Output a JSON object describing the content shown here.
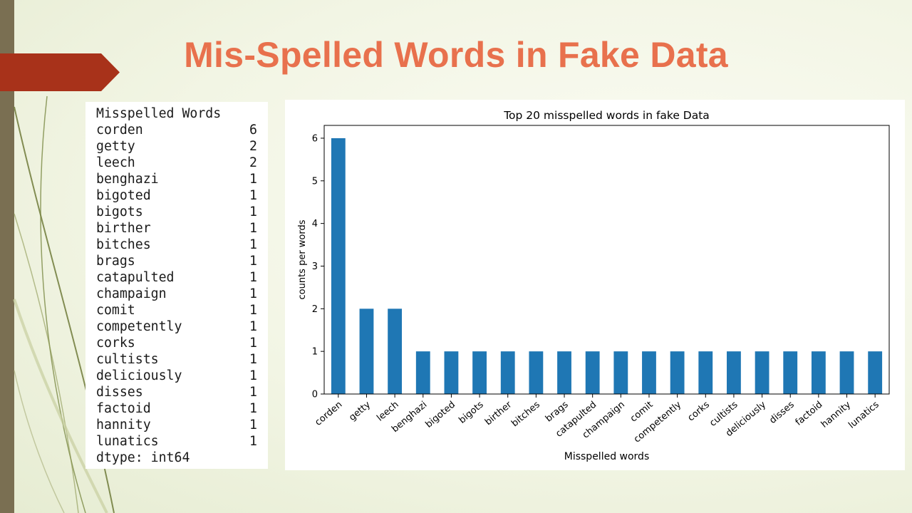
{
  "slide": {
    "title": "Mis-Spelled Words in Fake Data",
    "colors": {
      "title": "#e8714d",
      "accent_arrow": "#a8321a",
      "left_bar": "#7a6f52",
      "bar": "#1f77b4"
    }
  },
  "series_table": {
    "header": "Misspelled Words",
    "rows": [
      {
        "word": "corden",
        "count": "6"
      },
      {
        "word": "getty",
        "count": "2"
      },
      {
        "word": "leech",
        "count": "2"
      },
      {
        "word": "benghazi",
        "count": "1"
      },
      {
        "word": "bigoted",
        "count": "1"
      },
      {
        "word": "bigots",
        "count": "1"
      },
      {
        "word": "birther",
        "count": "1"
      },
      {
        "word": "bitches",
        "count": "1"
      },
      {
        "word": "brags",
        "count": "1"
      },
      {
        "word": "catapulted",
        "count": "1"
      },
      {
        "word": "champaign",
        "count": "1"
      },
      {
        "word": "comit",
        "count": "1"
      },
      {
        "word": "competently",
        "count": "1"
      },
      {
        "word": "corks",
        "count": "1"
      },
      {
        "word": "cultists",
        "count": "1"
      },
      {
        "word": "deliciously",
        "count": "1"
      },
      {
        "word": "disses",
        "count": "1"
      },
      {
        "word": "factoid",
        "count": "1"
      },
      {
        "word": "hannity",
        "count": "1"
      },
      {
        "word": "lunatics",
        "count": "1"
      }
    ],
    "footer": "dtype: int64"
  },
  "chart_data": {
    "type": "bar",
    "title": "Top 20 misspelled words in fake Data",
    "xlabel": "Misspelled words",
    "ylabel": "counts per words",
    "categories": [
      "corden",
      "getty",
      "leech",
      "benghazi",
      "bigoted",
      "bigots",
      "birther",
      "bitches",
      "brags",
      "catapulted",
      "champaign",
      "comit",
      "competently",
      "corks",
      "cultists",
      "deliciously",
      "disses",
      "factoid",
      "hannity",
      "lunatics"
    ],
    "values": [
      6,
      2,
      2,
      1,
      1,
      1,
      1,
      1,
      1,
      1,
      1,
      1,
      1,
      1,
      1,
      1,
      1,
      1,
      1,
      1
    ],
    "ylim": [
      0,
      6.3
    ],
    "yticks": [
      0,
      1,
      2,
      3,
      4,
      5,
      6
    ],
    "grid": false,
    "legend": "none"
  }
}
